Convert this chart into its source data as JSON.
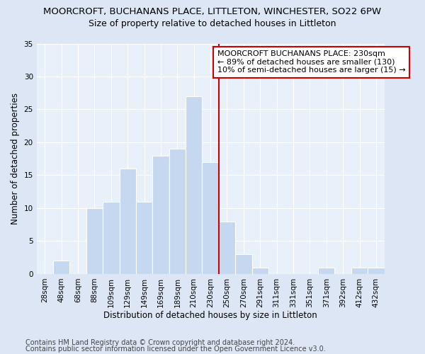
{
  "title": "MOORCROFT, BUCHANANS PLACE, LITTLETON, WINCHESTER, SO22 6PW",
  "subtitle": "Size of property relative to detached houses in Littleton",
  "xlabel": "Distribution of detached houses by size in Littleton",
  "ylabel": "Number of detached properties",
  "categories": [
    "28sqm",
    "48sqm",
    "68sqm",
    "88sqm",
    "109sqm",
    "129sqm",
    "149sqm",
    "169sqm",
    "189sqm",
    "210sqm",
    "230sqm",
    "250sqm",
    "270sqm",
    "291sqm",
    "311sqm",
    "331sqm",
    "351sqm",
    "371sqm",
    "392sqm",
    "412sqm",
    "432sqm"
  ],
  "values": [
    0,
    2,
    0,
    10,
    11,
    16,
    11,
    18,
    19,
    27,
    17,
    8,
    3,
    1,
    0,
    0,
    0,
    1,
    0,
    1,
    1
  ],
  "bar_color": "#c5d8f0",
  "bar_edgecolor": "#ffffff",
  "vline_color": "#cc0000",
  "vline_x_index": 10,
  "ylim": [
    0,
    35
  ],
  "yticks": [
    0,
    5,
    10,
    15,
    20,
    25,
    30,
    35
  ],
  "annotation_title": "MOORCROFT BUCHANANS PLACE: 230sqm",
  "annotation_line1": "← 89% of detached houses are smaller (130)",
  "annotation_line2": "10% of semi-detached houses are larger (15) →",
  "footer1": "Contains HM Land Registry data © Crown copyright and database right 2024.",
  "footer2": "Contains public sector information licensed under the Open Government Licence v3.0.",
  "bg_color": "#dce6f5",
  "plot_bg_color": "#e8f0fa",
  "title_fontsize": 9.5,
  "subtitle_fontsize": 9,
  "axis_label_fontsize": 8.5,
  "tick_fontsize": 7.5,
  "annotation_fontsize": 8,
  "footer_fontsize": 7
}
